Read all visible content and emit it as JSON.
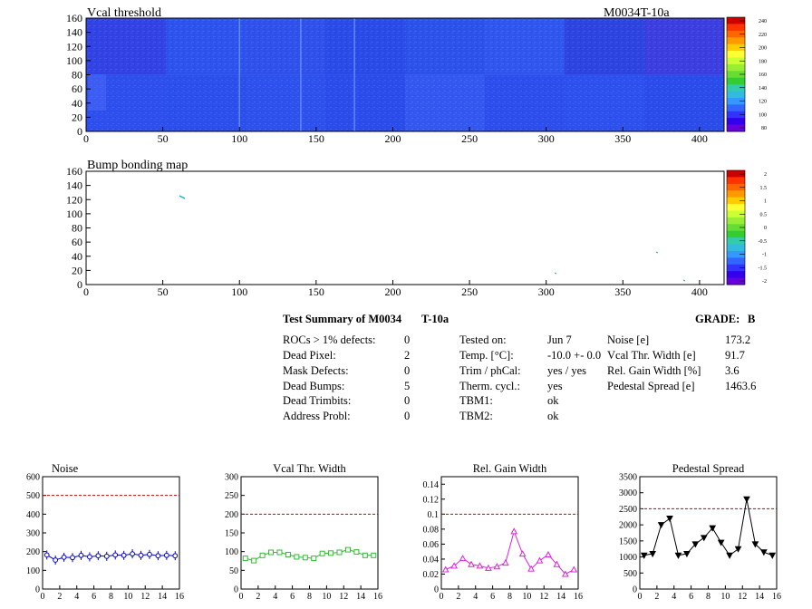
{
  "maps": {
    "vcal_title": "Vcal threshold",
    "module_label": "M0034T-10a",
    "bump_title": "Bump bonding map",
    "x_ticks": [
      0,
      50,
      100,
      150,
      200,
      250,
      300,
      350,
      400
    ],
    "y_ticks": [
      0,
      20,
      40,
      60,
      80,
      100,
      120,
      140,
      160
    ],
    "vcal_scale_ticks": [
      80,
      100,
      120,
      140,
      160,
      180,
      200,
      220,
      240
    ],
    "bump_scale_ticks": [
      "-2",
      "-1.5",
      "-1",
      "-0.5",
      "0",
      "0.5",
      "1",
      "1.5",
      "2"
    ]
  },
  "summary": {
    "title": "Test Summary of M0034",
    "title_suffix": "T-10a",
    "grade_label": "GRADE:",
    "grade_value": "B",
    "col1": [
      {
        "label": "ROCs > 1% defects:",
        "value": "0"
      },
      {
        "label": "Dead Pixel:",
        "value": "2"
      },
      {
        "label": "Mask Defects:",
        "value": "0"
      },
      {
        "label": "Dead Bumps:",
        "value": "5"
      },
      {
        "label": "Dead Trimbits:",
        "value": "0"
      },
      {
        "label": "Address Probl:",
        "value": "0"
      }
    ],
    "col2": [
      {
        "label": "Tested on:",
        "value": "Jun 7"
      },
      {
        "label": "Temp. [°C]:",
        "value": "-10.0 +- 0.0"
      },
      {
        "label": "Trim / phCal:",
        "value": "yes / yes"
      },
      {
        "label": "Therm. cycl.:",
        "value": "yes"
      },
      {
        "label": "TBM1:",
        "value": "ok"
      },
      {
        "label": "TBM2:",
        "value": "ok"
      }
    ],
    "col3": [
      {
        "label": "Noise [e]",
        "value": "173.2"
      },
      {
        "label": "Vcal Thr. Width [e]",
        "value": "91.7"
      },
      {
        "label": "Rel. Gain Width [%]",
        "value": "3.6"
      },
      {
        "label": "Pedestal Spread [e]",
        "value": "1463.6"
      }
    ]
  },
  "chart_data": [
    {
      "type": "line",
      "title": "Noise",
      "x": [
        0,
        1,
        2,
        3,
        4,
        5,
        6,
        7,
        8,
        9,
        10,
        11,
        12,
        13,
        14,
        15
      ],
      "values": [
        182,
        155,
        170,
        168,
        180,
        172,
        178,
        175,
        182,
        180,
        188,
        180,
        185,
        178,
        180,
        178
      ],
      "xlim": [
        0,
        16
      ],
      "ylim": [
        0,
        600
      ],
      "x_ticks": [
        0,
        2,
        4,
        6,
        8,
        10,
        12,
        14,
        16
      ],
      "y_ticks": [
        0,
        100,
        200,
        300,
        400,
        500,
        600
      ],
      "cut": 500,
      "color": "#0000cc",
      "marker": "circle-errorbar"
    },
    {
      "type": "line",
      "title": "Vcal Thr. Width",
      "x": [
        0,
        1,
        2,
        3,
        4,
        5,
        6,
        7,
        8,
        9,
        10,
        11,
        12,
        13,
        14,
        15
      ],
      "values": [
        82,
        76,
        90,
        98,
        98,
        92,
        86,
        84,
        82,
        95,
        96,
        98,
        105,
        99,
        90,
        90
      ],
      "xlim": [
        0,
        16
      ],
      "ylim": [
        0,
        300
      ],
      "x_ticks": [
        0,
        2,
        4,
        6,
        8,
        10,
        12,
        14,
        16
      ],
      "y_ticks": [
        0,
        50,
        100,
        150,
        200,
        250,
        300
      ],
      "cut": 200,
      "color": "#33bb33",
      "marker": "square"
    },
    {
      "type": "line",
      "title": "Rel. Gain Width",
      "x": [
        0,
        1,
        2,
        3,
        4,
        5,
        6,
        7,
        8,
        9,
        10,
        11,
        12,
        13,
        14,
        15
      ],
      "values": [
        0.026,
        0.031,
        0.041,
        0.033,
        0.031,
        0.028,
        0.03,
        0.035,
        0.077,
        0.047,
        0.027,
        0.038,
        0.046,
        0.033,
        0.02,
        0.026
      ],
      "xlim": [
        0,
        16
      ],
      "ylim": [
        0,
        0.15
      ],
      "x_ticks": [
        0,
        2,
        4,
        6,
        8,
        10,
        12,
        14,
        16
      ],
      "y_ticks": [
        "0",
        "0.02",
        "0.04",
        "0.06",
        "0.08",
        "0.1",
        "0.12",
        "0.14"
      ],
      "cut": 0.1,
      "color": "#dd22dd",
      "marker": "triangle-up"
    },
    {
      "type": "line",
      "title": "Pedestal Spread",
      "x": [
        0,
        1,
        2,
        3,
        4,
        5,
        6,
        7,
        8,
        9,
        10,
        11,
        12,
        13,
        14,
        15
      ],
      "values": [
        1050,
        1100,
        2000,
        2200,
        1050,
        1100,
        1400,
        1600,
        1900,
        1450,
        1050,
        1250,
        2800,
        1400,
        1150,
        1050
      ],
      "xlim": [
        0,
        16
      ],
      "ylim": [
        0,
        3500
      ],
      "x_ticks": [
        0,
        2,
        4,
        6,
        8,
        10,
        12,
        14,
        16
      ],
      "y_ticks": [
        0,
        500,
        1000,
        1500,
        2000,
        2500,
        3000,
        3500
      ],
      "cut": 2500,
      "color": "#000000",
      "marker": "triangle-down"
    }
  ]
}
